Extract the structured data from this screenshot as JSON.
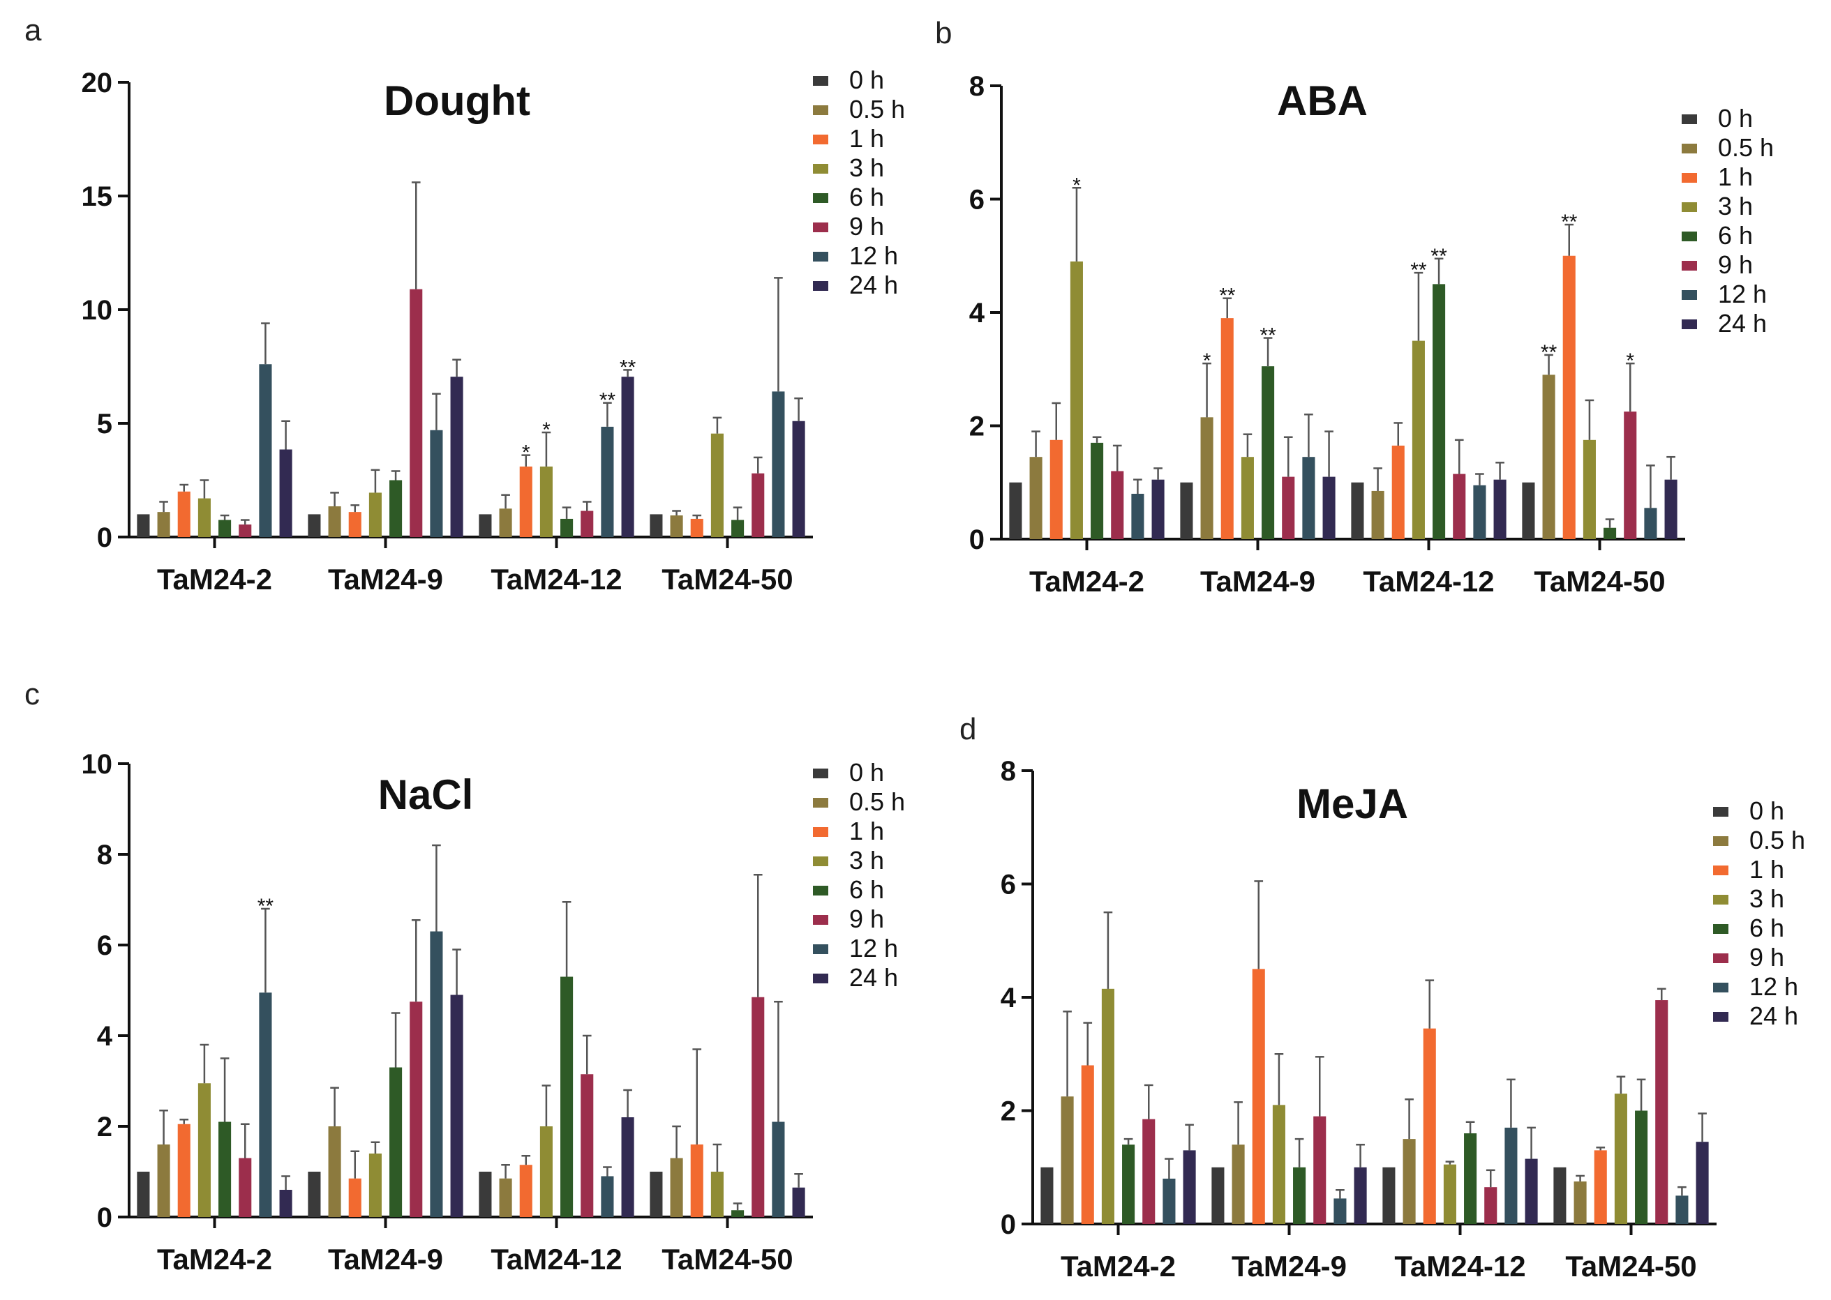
{
  "colors": {
    "0 h": "#3a3a3a",
    "0.5 h": "#8c7a3e",
    "1 h": "#f26a30",
    "3 h": "#8f8c34",
    "6 h": "#2e5a26",
    "9 h": "#9c2e4c",
    "12 h": "#34505e",
    "24 h": "#322a52"
  },
  "chart_data": [
    {
      "panel": "a",
      "type": "bar",
      "title": "Dought",
      "categories": [
        "TaM24-2",
        "TaM24-9",
        "TaM24-12",
        "TaM24-50"
      ],
      "ylim": [
        0,
        20
      ],
      "yticks": [
        0,
        5,
        10,
        15,
        20
      ],
      "legend_position": "top-right",
      "series": [
        {
          "name": "0 h",
          "values": [
            1,
            1,
            1,
            1
          ],
          "errors": [
            0,
            0,
            0,
            0
          ],
          "sig": [
            "",
            "",
            "",
            ""
          ]
        },
        {
          "name": "0.5 h",
          "values": [
            1.1,
            1.35,
            1.25,
            0.95
          ],
          "errors": [
            0.45,
            0.6,
            0.6,
            0.2
          ],
          "sig": [
            "",
            "",
            "",
            ""
          ]
        },
        {
          "name": "1 h",
          "values": [
            2.0,
            1.1,
            3.1,
            0.8
          ],
          "errors": [
            0.3,
            0.3,
            0.5,
            0.15
          ],
          "sig": [
            "",
            "",
            "*",
            ""
          ]
        },
        {
          "name": "3 h",
          "values": [
            1.7,
            1.95,
            3.1,
            4.55
          ],
          "errors": [
            0.8,
            1.0,
            1.5,
            0.7
          ],
          "sig": [
            "",
            "",
            "*",
            ""
          ]
        },
        {
          "name": "6 h",
          "values": [
            0.75,
            2.5,
            0.8,
            0.75
          ],
          "errors": [
            0.2,
            0.4,
            0.5,
            0.55
          ],
          "sig": [
            "",
            "",
            "",
            ""
          ]
        },
        {
          "name": "9 h",
          "values": [
            0.55,
            10.9,
            1.15,
            2.8
          ],
          "errors": [
            0.2,
            4.7,
            0.4,
            0.7
          ],
          "sig": [
            "",
            "",
            "",
            ""
          ]
        },
        {
          "name": "12 h",
          "values": [
            7.6,
            4.7,
            4.85,
            6.4
          ],
          "errors": [
            1.8,
            1.6,
            1.05,
            5.0
          ],
          "sig": [
            "",
            "",
            "**",
            ""
          ]
        },
        {
          "name": "24 h",
          "values": [
            3.85,
            7.05,
            7.05,
            5.1
          ],
          "errors": [
            1.25,
            0.75,
            0.3,
            1.0
          ],
          "sig": [
            "",
            "",
            "**",
            ""
          ]
        }
      ]
    },
    {
      "panel": "b",
      "type": "bar",
      "title": "ABA",
      "categories": [
        "TaM24-2",
        "TaM24-9",
        "TaM24-12",
        "TaM24-50"
      ],
      "ylim": [
        0,
        8
      ],
      "yticks": [
        0,
        2,
        4,
        6,
        8
      ],
      "legend_position": "right",
      "series": [
        {
          "name": "0 h",
          "values": [
            1,
            1,
            1,
            1
          ],
          "errors": [
            0,
            0,
            0,
            0
          ],
          "sig": [
            "",
            "",
            "",
            ""
          ]
        },
        {
          "name": "0.5 h",
          "values": [
            1.45,
            2.15,
            0.85,
            2.9
          ],
          "errors": [
            0.45,
            0.95,
            0.4,
            0.35
          ],
          "sig": [
            "",
            "*",
            "",
            "**"
          ]
        },
        {
          "name": "1 h",
          "values": [
            1.75,
            3.9,
            1.65,
            5.0
          ],
          "errors": [
            0.65,
            0.35,
            0.4,
            0.55
          ],
          "sig": [
            "",
            "**",
            "",
            "**"
          ]
        },
        {
          "name": "3 h",
          "values": [
            4.9,
            1.45,
            3.5,
            1.75
          ],
          "errors": [
            1.3,
            0.4,
            1.2,
            0.7
          ],
          "sig": [
            "*",
            "",
            "**",
            ""
          ]
        },
        {
          "name": "6 h",
          "values": [
            1.7,
            3.05,
            4.5,
            0.2
          ],
          "errors": [
            0.1,
            0.5,
            0.45,
            0.15
          ],
          "sig": [
            "",
            "**",
            "**",
            ""
          ]
        },
        {
          "name": "9 h",
          "values": [
            1.2,
            1.1,
            1.15,
            2.25
          ],
          "errors": [
            0.45,
            0.7,
            0.6,
            0.85
          ],
          "sig": [
            "",
            "",
            "",
            "*"
          ]
        },
        {
          "name": "12 h",
          "values": [
            0.8,
            1.45,
            0.95,
            0.55
          ],
          "errors": [
            0.25,
            0.75,
            0.2,
            0.75
          ],
          "sig": [
            "",
            "",
            "",
            ""
          ]
        },
        {
          "name": "24 h",
          "values": [
            1.05,
            1.1,
            1.05,
            1.05
          ],
          "errors": [
            0.2,
            0.8,
            0.3,
            0.4
          ],
          "sig": [
            "",
            "",
            "",
            ""
          ]
        }
      ]
    },
    {
      "panel": "c",
      "type": "bar",
      "title": "NaCl",
      "categories": [
        "TaM24-2",
        "TaM24-9",
        "TaM24-12",
        "TaM24-50"
      ],
      "ylim": [
        0,
        10
      ],
      "yticks": [
        0,
        2,
        4,
        6,
        8,
        10
      ],
      "legend_position": "top-right",
      "series": [
        {
          "name": "0 h",
          "values": [
            1,
            1,
            1,
            1
          ],
          "errors": [
            0,
            0,
            0,
            0
          ],
          "sig": [
            "",
            "",
            "",
            ""
          ]
        },
        {
          "name": "0.5 h",
          "values": [
            1.6,
            2.0,
            0.85,
            1.3
          ],
          "errors": [
            0.75,
            0.85,
            0.3,
            0.7
          ],
          "sig": [
            "",
            "",
            "",
            ""
          ]
        },
        {
          "name": "1 h",
          "values": [
            2.05,
            0.85,
            1.15,
            1.6
          ],
          "errors": [
            0.1,
            0.6,
            0.2,
            2.1
          ],
          "sig": [
            "",
            "",
            "",
            ""
          ]
        },
        {
          "name": "3 h",
          "values": [
            2.95,
            1.4,
            2.0,
            1.0
          ],
          "errors": [
            0.85,
            0.25,
            0.9,
            0.6
          ],
          "sig": [
            "",
            "",
            "",
            ""
          ]
        },
        {
          "name": "6 h",
          "values": [
            2.1,
            3.3,
            5.3,
            0.15
          ],
          "errors": [
            1.4,
            1.2,
            1.65,
            0.15
          ],
          "sig": [
            "",
            "",
            "",
            ""
          ]
        },
        {
          "name": "9 h",
          "values": [
            1.3,
            4.75,
            3.15,
            4.85
          ],
          "errors": [
            0.75,
            1.8,
            0.85,
            2.7
          ],
          "sig": [
            "",
            "",
            "",
            ""
          ]
        },
        {
          "name": "12 h",
          "values": [
            4.95,
            6.3,
            0.9,
            2.1
          ],
          "errors": [
            1.85,
            1.9,
            0.2,
            2.65
          ],
          "sig": [
            "**",
            "",
            "",
            ""
          ]
        },
        {
          "name": "24 h",
          "values": [
            0.6,
            4.9,
            2.2,
            0.65
          ],
          "errors": [
            0.3,
            1.0,
            0.6,
            0.3
          ],
          "sig": [
            "",
            "",
            "",
            ""
          ]
        }
      ]
    },
    {
      "panel": "d",
      "type": "bar",
      "title": "MeJA",
      "categories": [
        "TaM24-2",
        "TaM24-9",
        "TaM24-12",
        "TaM24-50"
      ],
      "ylim": [
        0,
        8
      ],
      "yticks": [
        0,
        2,
        4,
        6,
        8
      ],
      "legend_position": "right",
      "series": [
        {
          "name": "0 h",
          "values": [
            1,
            1,
            1,
            1
          ],
          "errors": [
            0,
            0,
            0,
            0
          ],
          "sig": [
            "",
            "",
            "",
            ""
          ]
        },
        {
          "name": "0.5 h",
          "values": [
            2.25,
            1.4,
            1.5,
            0.75
          ],
          "errors": [
            1.5,
            0.75,
            0.7,
            0.1
          ],
          "sig": [
            "",
            "",
            "",
            ""
          ]
        },
        {
          "name": "1 h",
          "values": [
            2.8,
            4.5,
            3.45,
            1.3
          ],
          "errors": [
            0.75,
            1.55,
            0.85,
            0.05
          ],
          "sig": [
            "",
            "",
            "",
            ""
          ]
        },
        {
          "name": "3 h",
          "values": [
            4.15,
            2.1,
            1.05,
            2.3
          ],
          "errors": [
            1.35,
            0.9,
            0.05,
            0.3
          ],
          "sig": [
            "",
            "",
            "",
            ""
          ]
        },
        {
          "name": "6 h",
          "values": [
            1.4,
            1.0,
            1.6,
            2.0
          ],
          "errors": [
            0.1,
            0.5,
            0.2,
            0.55
          ],
          "sig": [
            "",
            "",
            "",
            ""
          ]
        },
        {
          "name": "9 h",
          "values": [
            1.85,
            1.9,
            0.65,
            3.95
          ],
          "errors": [
            0.6,
            1.05,
            0.3,
            0.2
          ],
          "sig": [
            "",
            "",
            "",
            ""
          ]
        },
        {
          "name": "12 h",
          "values": [
            0.8,
            0.45,
            1.7,
            0.5
          ],
          "errors": [
            0.35,
            0.15,
            0.85,
            0.15
          ],
          "sig": [
            "",
            "",
            "",
            ""
          ]
        },
        {
          "name": "24 h",
          "values": [
            1.3,
            1.0,
            1.15,
            1.45
          ],
          "errors": [
            0.45,
            0.4,
            0.55,
            0.5
          ],
          "sig": [
            "",
            "",
            "",
            ""
          ]
        }
      ]
    }
  ]
}
